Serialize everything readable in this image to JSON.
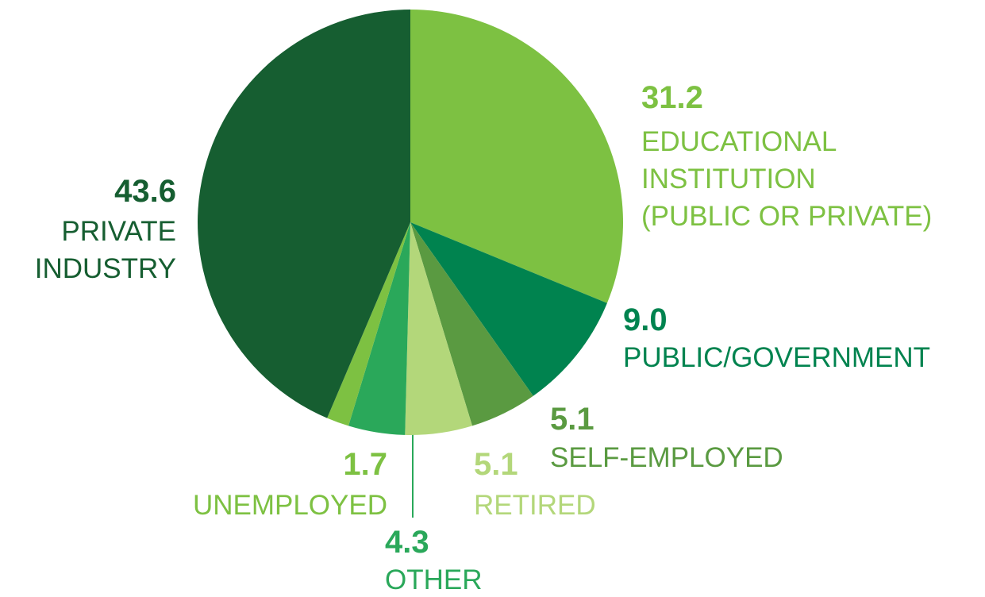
{
  "chart_data": {
    "type": "pie",
    "categories": [
      "EDUCATIONAL\nINSTITUTION\n(PUBLIC OR PRIVATE)",
      "PUBLIC/GOVERNMENT",
      "SELF-EMPLOYED",
      "RETIRED",
      "OTHER",
      "UNEMPLOYED",
      "PRIVATE\nINDUSTRY"
    ],
    "values": [
      31.2,
      9.0,
      5.1,
      5.1,
      4.3,
      1.7,
      43.6
    ],
    "value_labels": [
      "31.2",
      "9.0",
      "5.1",
      "5.1",
      "4.3",
      "1.7",
      "43.6"
    ],
    "colors": [
      "#7dc142",
      "#00834f",
      "#5a9a41",
      "#b3d77a",
      "#2aa85a",
      "#7dc142",
      "#165e31"
    ]
  }
}
